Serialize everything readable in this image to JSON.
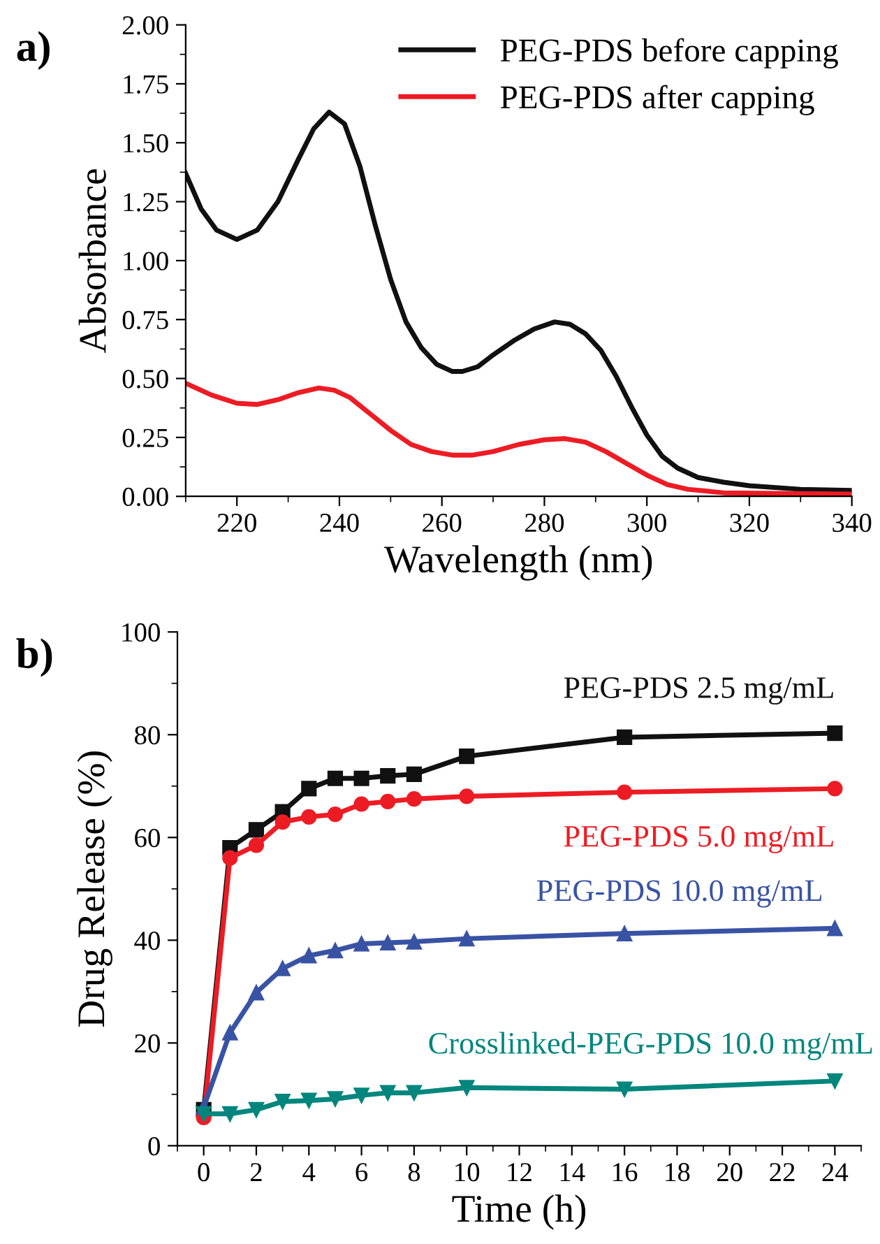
{
  "chart_data": [
    {
      "type": "line",
      "xlabel": "Wavelength (nm)",
      "ylabel": "Absorbance",
      "annotations": [
        "a)"
      ],
      "xlim": [
        210,
        340
      ],
      "ylim": [
        0,
        2
      ],
      "xticks": [
        220,
        240,
        260,
        280,
        300,
        320,
        340
      ],
      "yticks": [
        {
          "value": 0,
          "label": "0.00"
        },
        {
          "value": 0.25,
          "label": "0.25"
        },
        {
          "value": 0.5,
          "label": "0.50"
        },
        {
          "value": 0.75,
          "label": "0.75"
        },
        {
          "value": 1,
          "label": "1.00"
        },
        {
          "value": 1.25,
          "label": "1.25"
        },
        {
          "value": 1.5,
          "label": "1.50"
        },
        {
          "value": 1.75,
          "label": "1.75"
        },
        {
          "value": 2,
          "label": "2.00"
        }
      ],
      "legend": "top right",
      "grid": false,
      "marker": "none",
      "series": [
        {
          "name": "PEG-PDS before capping",
          "color": "#111111",
          "x": [
            210,
            213,
            216,
            220,
            224,
            228,
            232,
            235,
            238,
            241,
            244,
            247,
            250,
            253,
            256,
            259,
            262,
            264,
            267,
            270,
            274,
            278,
            282,
            285,
            288,
            291,
            294,
            297,
            300,
            303,
            306,
            310,
            315,
            320,
            330,
            340
          ],
          "values": [
            1.37,
            1.22,
            1.13,
            1.09,
            1.13,
            1.25,
            1.43,
            1.56,
            1.63,
            1.58,
            1.4,
            1.15,
            0.92,
            0.74,
            0.63,
            0.56,
            0.53,
            0.53,
            0.55,
            0.6,
            0.66,
            0.71,
            0.74,
            0.73,
            0.69,
            0.62,
            0.51,
            0.38,
            0.26,
            0.17,
            0.12,
            0.08,
            0.06,
            0.045,
            0.03,
            0.025
          ]
        },
        {
          "name": "PEG-PDS after capping",
          "color": "#ed1c24",
          "x": [
            210,
            215,
            220,
            224,
            228,
            232,
            236,
            239,
            242,
            246,
            250,
            254,
            258,
            262,
            266,
            270,
            275,
            280,
            284,
            288,
            292,
            296,
            300,
            304,
            308,
            315,
            340
          ],
          "values": [
            0.48,
            0.43,
            0.395,
            0.39,
            0.41,
            0.44,
            0.46,
            0.45,
            0.42,
            0.35,
            0.28,
            0.22,
            0.19,
            0.175,
            0.175,
            0.19,
            0.22,
            0.24,
            0.245,
            0.23,
            0.19,
            0.14,
            0.09,
            0.05,
            0.03,
            0.015,
            0.01
          ]
        }
      ]
    },
    {
      "type": "line",
      "xlabel": "Time (h)",
      "ylabel": "Drug Release (%)",
      "annotations": [
        "b)"
      ],
      "xlim": [
        -1,
        25
      ],
      "ylim": [
        0,
        100
      ],
      "xticks": [
        0,
        2,
        4,
        6,
        8,
        10,
        12,
        14,
        16,
        18,
        20,
        22,
        24
      ],
      "yticks": [
        0,
        20,
        40,
        60,
        80,
        100
      ],
      "legend": false,
      "grid": false,
      "x": [
        0,
        1,
        2,
        3,
        4,
        5,
        6,
        7,
        8,
        10,
        16,
        24
      ],
      "series": [
        {
          "name": "PEG-PDS 2.5 mg/mL",
          "color": "#111111",
          "marker": "square",
          "values": [
            7,
            58,
            61.5,
            65,
            69.5,
            71.5,
            71.5,
            72,
            72.3,
            75.8,
            79.5,
            80.3
          ]
        },
        {
          "name": "PEG-PDS 5.0 mg/mL",
          "color": "#ed1c24",
          "marker": "circle",
          "values": [
            5.5,
            56,
            58.5,
            63,
            64,
            64.5,
            66.5,
            67,
            67.5,
            68,
            68.8,
            69.5
          ]
        },
        {
          "name": "PEG-PDS 10.0 mg/mL",
          "color": "#3953a4",
          "marker": "triangle",
          "values": [
            7.5,
            22,
            29.8,
            34.5,
            37,
            38,
            39.3,
            39.5,
            39.7,
            40.3,
            41.3,
            42.3
          ]
        },
        {
          "name": "Crosslinked-PEG-PDS 10.0 mg/mL",
          "color": "#00867d",
          "marker": "triangle_down",
          "values": [
            6.2,
            6.2,
            7,
            8.6,
            8.8,
            9.1,
            9.8,
            10.3,
            10.3,
            11.3,
            11,
            12.6
          ]
        }
      ]
    }
  ]
}
